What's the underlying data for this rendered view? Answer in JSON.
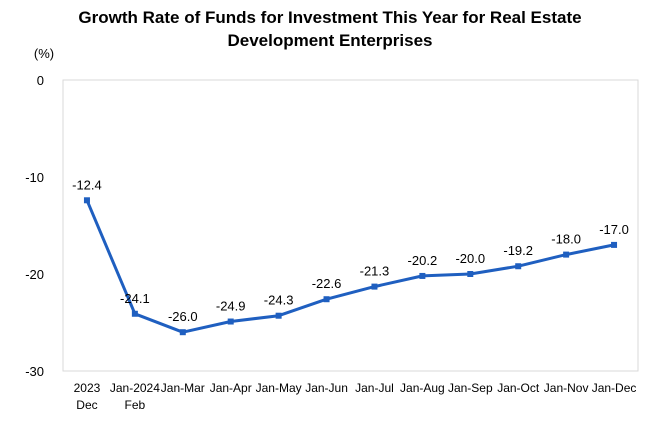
{
  "chart_data": {
    "type": "line",
    "title_lines": [
      "Growth Rate of Funds for Investment This Year for Real Estate",
      "Development Enterprises"
    ],
    "ylabel": "(%)",
    "xlabel": "",
    "ylim": [
      -30,
      0
    ],
    "yticks": [
      0,
      -10,
      -20,
      -30
    ],
    "grid": false,
    "legend": "none",
    "categories": [
      [
        "2023",
        "Dec"
      ],
      [
        "Jan-2024",
        "Feb"
      ],
      [
        "Jan-Mar"
      ],
      [
        "Jan-Apr"
      ],
      [
        "Jan-May"
      ],
      [
        "Jan-Jun"
      ],
      [
        "Jan-Jul"
      ],
      [
        "Jan-Aug"
      ],
      [
        "Jan-Sep"
      ],
      [
        "Jan-Oct"
      ],
      [
        "Jan-Nov"
      ],
      [
        "Jan-Dec"
      ]
    ],
    "series": [
      {
        "values": [
          -12.4,
          -24.1,
          -26.0,
          -24.9,
          -24.3,
          -22.6,
          -21.3,
          -20.2,
          -20.0,
          -19.2,
          -18.0,
          -17.0
        ],
        "labels": [
          "-12.4",
          "-24.1",
          "-26.0",
          "-24.9",
          "-24.3",
          "-22.6",
          "-21.3",
          "-20.2",
          "-20.0",
          "-19.2",
          "-18.0",
          "-17.0"
        ],
        "color": "#1f5fc0"
      }
    ]
  }
}
